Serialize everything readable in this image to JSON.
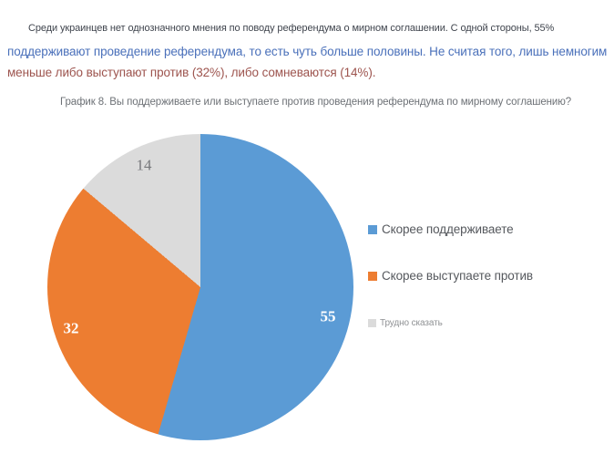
{
  "intro": {
    "line1": "Среди украинцев нет однозначного мнения по поводу референдума о мирном соглашении. С одной стороны, 55%",
    "line2": "поддерживают проведение референдума, то есть чуть больше половины. Не считая того, лишь немногим",
    "line3": "меньше либо выступают против (32%), либо сомневаются (14%)."
  },
  "colors": {
    "intro_default": "#3f444d",
    "intro_blue": "#4a70ba",
    "intro_red": "#9d544e",
    "title_gray": "#6d7176"
  },
  "chart_data": {
    "type": "pie",
    "title": "График 8. Вы поддерживаете или выступаете против проведения референдума по мирному соглашению?",
    "categories": [
      "Скорее поддерживаете",
      "Скорее выступаете против",
      "Трудно сказать"
    ],
    "values": [
      55,
      32,
      14
    ],
    "colors": [
      "#5B9BD5",
      "#ED7D31",
      "#DBDBDB"
    ],
    "slice_label_colors": [
      "#FFFFFF",
      "#FFFFFF",
      "#77797C"
    ],
    "start_angle_deg": 0,
    "direction": "clockwise",
    "legend_position": "right",
    "data_labels_visible": true
  }
}
